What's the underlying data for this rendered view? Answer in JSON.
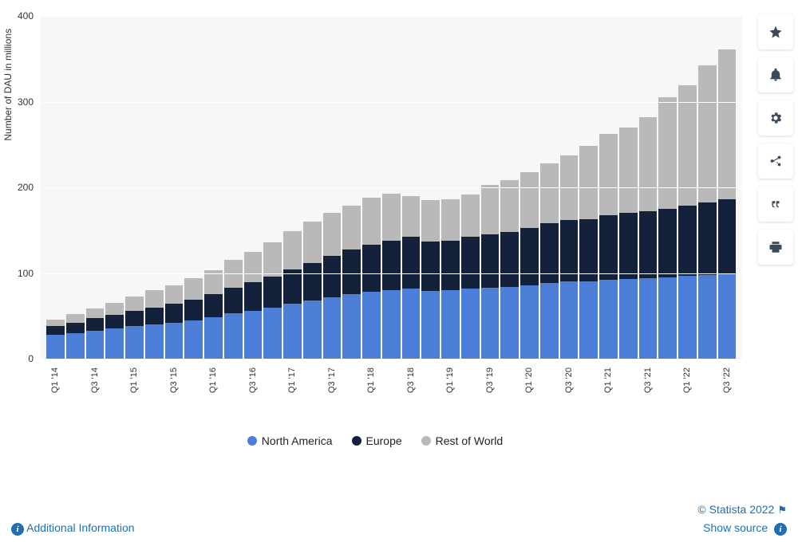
{
  "chart": {
    "type": "stacked-bar",
    "y_axis_title": "Number of DAU in millions",
    "ylim": [
      0,
      400
    ],
    "ytick_step": 100,
    "yticks": [
      0,
      100,
      200,
      300,
      400
    ],
    "background_color": "#f7f7f7",
    "grid_color": "#ffffff",
    "label_fontsize": 12,
    "tick_fontsize": 11,
    "categories": [
      "Q1 '14",
      "Q2 '14",
      "Q3 '14",
      "Q4 '14",
      "Q1 '15",
      "Q2 '15",
      "Q3 '15",
      "Q4 '15",
      "Q1 '16",
      "Q2 '16",
      "Q3 '16",
      "Q4 '16",
      "Q1 '17",
      "Q2 '17",
      "Q3 '17",
      "Q4 '17",
      "Q1 '18",
      "Q2 '18",
      "Q3 '18",
      "Q4 '18",
      "Q1 '19",
      "Q2 '19",
      "Q3 '19",
      "Q4 '19",
      "Q1 '20",
      "Q2 '20",
      "Q3 '20",
      "Q4 '20",
      "Q1 '21",
      "Q2 '21",
      "Q3 '21",
      "Q4 '21",
      "Q1 '22",
      "Q2 '22",
      "Q3 '22"
    ],
    "x_label_every": 2,
    "series": [
      {
        "name": "North America",
        "color": "#4d7fd8",
        "values": [
          28,
          30,
          33,
          35,
          38,
          40,
          42,
          45,
          48,
          53,
          56,
          60,
          64,
          68,
          72,
          75,
          78,
          80,
          82,
          79,
          80,
          82,
          83,
          84,
          86,
          88,
          90,
          90,
          92,
          93,
          94,
          95,
          97,
          98,
          100
        ]
      },
      {
        "name": "Europe",
        "color": "#14213a",
        "values": [
          10,
          12,
          14,
          16,
          18,
          20,
          22,
          24,
          27,
          30,
          33,
          36,
          40,
          44,
          48,
          52,
          55,
          58,
          60,
          58,
          58,
          60,
          62,
          64,
          67,
          70,
          72,
          73,
          75,
          77,
          78,
          80,
          82,
          84,
          86
        ]
      },
      {
        "name": "Rest of World",
        "color": "#b9b9b9",
        "values": [
          8,
          10,
          12,
          14,
          17,
          20,
          22,
          25,
          28,
          32,
          36,
          40,
          45,
          48,
          50,
          52,
          55,
          55,
          48,
          48,
          48,
          50,
          58,
          60,
          65,
          70,
          75,
          85,
          95,
          100,
          110,
          130,
          140,
          160,
          175
        ]
      }
    ]
  },
  "legend": {
    "items": [
      {
        "label": "North America",
        "color": "#4d7fd8"
      },
      {
        "label": "Europe",
        "color": "#14213a"
      },
      {
        "label": "Rest of World",
        "color": "#b9b9b9"
      }
    ]
  },
  "sidebar_icons": [
    "star",
    "bell",
    "gear",
    "share",
    "quote",
    "print"
  ],
  "footer": {
    "additional_info": "Additional Information",
    "copyright": "© Statista 2022",
    "show_source": "Show source"
  }
}
